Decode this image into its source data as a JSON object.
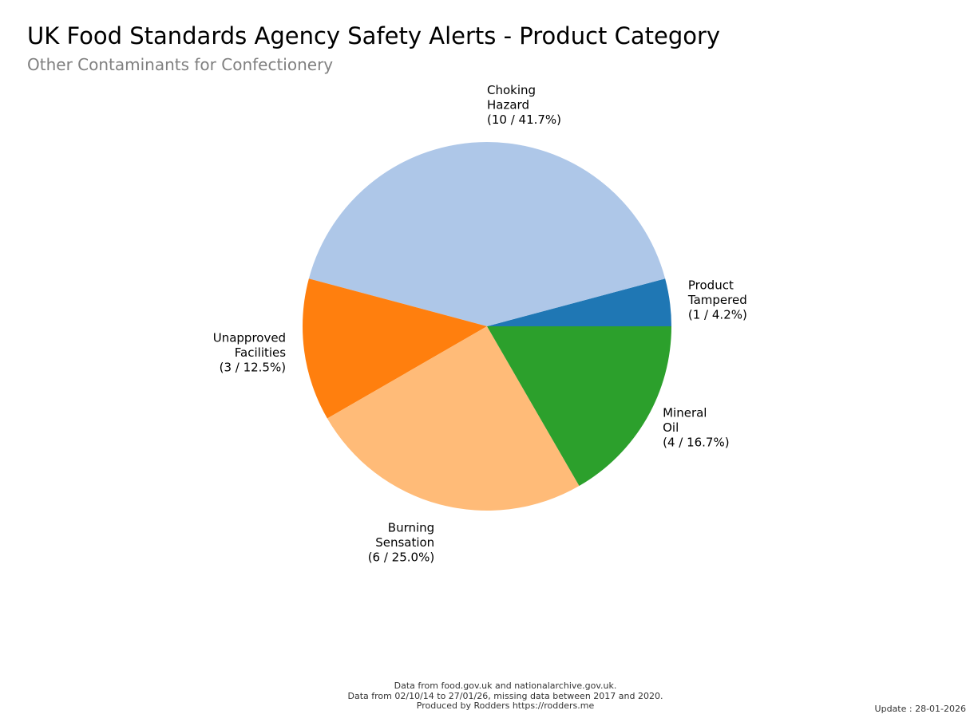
{
  "title": "UK Food Standards Agency Safety Alerts - Product Category",
  "subtitle": "Other Contaminants for Confectionery",
  "chart_data": {
    "type": "pie",
    "title": "UK Food Standards Agency Safety Alerts - Product Category",
    "subtitle": "Other Contaminants for Confectionery",
    "start_angle_deg": 0,
    "direction": "counterclockwise",
    "slices": [
      {
        "label": "Product Tampered",
        "label_lines": [
          "Product",
          "Tampered",
          "(1 / 4.2%)"
        ],
        "value": 1,
        "percent": 4.2,
        "color": "#1f77b4"
      },
      {
        "label": "Choking Hazard",
        "label_lines": [
          "Choking",
          "Hazard",
          "(10 / 41.7%)"
        ],
        "value": 10,
        "percent": 41.7,
        "color": "#aec7e8"
      },
      {
        "label": "Unapproved Facilities",
        "label_lines": [
          "Unapproved",
          "Facilities",
          "(3 / 12.5%)"
        ],
        "value": 3,
        "percent": 12.5,
        "color": "#ff7f0e"
      },
      {
        "label": "Burning Sensation",
        "label_lines": [
          "Burning",
          "Sensation",
          "(6 / 25.0%)"
        ],
        "value": 6,
        "percent": 25.0,
        "color": "#ffbb78"
      },
      {
        "label": "Mineral Oil",
        "label_lines": [
          "Mineral",
          "Oil",
          "(4 / 16.7%)"
        ],
        "value": 4,
        "percent": 16.7,
        "color": "#2ca02c"
      }
    ]
  },
  "footer": {
    "line1": "Data from food.gov.uk and nationalarchive.gov.uk.",
    "line2": "Data from 02/10/14 to 27/01/26, missing data between 2017 and 2020.",
    "line3": "Produced by Rodders https://rodders.me"
  },
  "update": "Update : 28-01-2026"
}
